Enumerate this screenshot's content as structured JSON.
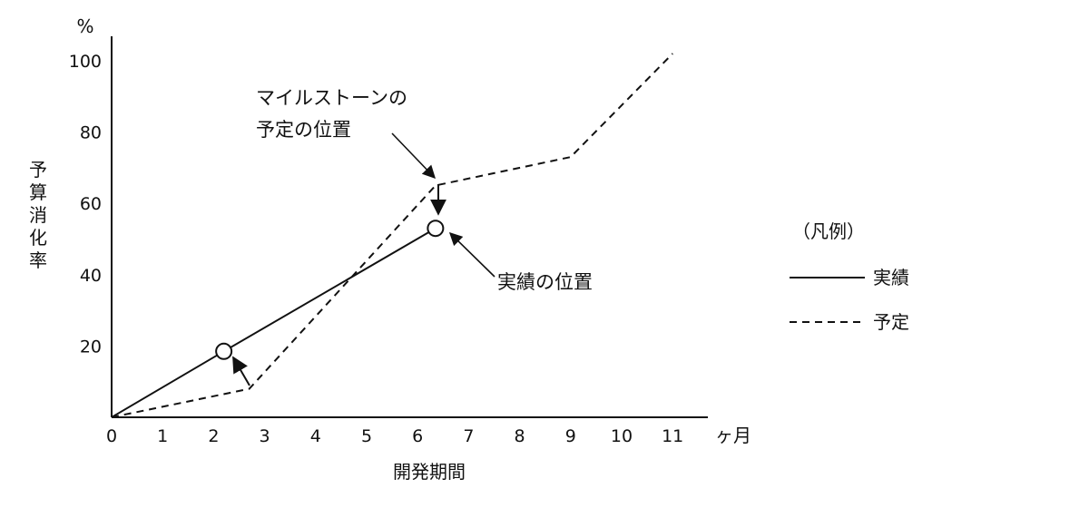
{
  "chart_data": {
    "type": "line",
    "title": "",
    "xlabel": "開発期間",
    "x_unit": "ヶ月",
    "ylabel": "予算消化率",
    "y_unit": "%",
    "xlim": [
      0,
      11
    ],
    "ylim": [
      0,
      100
    ],
    "x_ticks": [
      "0",
      "1",
      "2",
      "3",
      "4",
      "5",
      "6",
      "7",
      "8",
      "9",
      "10",
      "11"
    ],
    "y_ticks": [
      "20",
      "40",
      "60",
      "80",
      "100"
    ],
    "grid": false,
    "legend": {
      "title": "（凡例）",
      "position": "right",
      "items": [
        {
          "label": "実績",
          "style": "solid"
        },
        {
          "label": "予定",
          "style": "dashed"
        }
      ]
    },
    "series": [
      {
        "name": "実績",
        "style": "solid",
        "points": [
          [
            0,
            0
          ],
          [
            2.2,
            18.5
          ],
          [
            6.35,
            53
          ]
        ]
      },
      {
        "name": "予定",
        "style": "dashed",
        "points": [
          [
            0,
            0
          ],
          [
            2.7,
            8
          ],
          [
            6.35,
            65
          ],
          [
            9,
            73
          ],
          [
            11,
            102
          ]
        ]
      }
    ],
    "markers": [
      {
        "series": "実績",
        "x": 2.2,
        "y": 18.5
      },
      {
        "series": "実績",
        "x": 6.35,
        "y": 53
      }
    ],
    "annotations": [
      {
        "lines": [
          "マイルストーンの",
          "予定の位置"
        ],
        "points_to": [
          6.35,
          65
        ]
      },
      {
        "lines": [
          "実績の位置"
        ],
        "points_to": [
          6.35,
          53
        ]
      }
    ]
  }
}
